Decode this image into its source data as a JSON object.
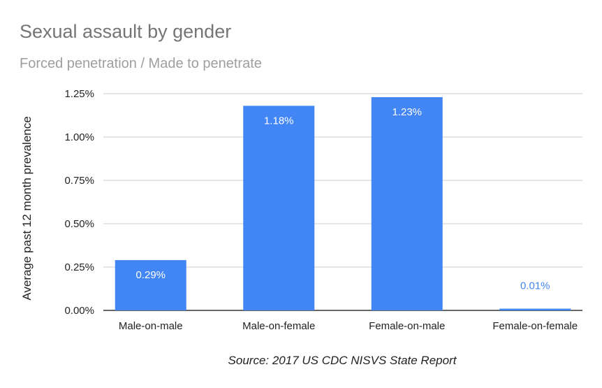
{
  "chart_data": {
    "type": "bar",
    "title": "Sexual assault by gender",
    "subtitle": "Forced penetration / Made to penetrate",
    "ylabel": "Average past 12 month prevalence",
    "xlabel": "",
    "source": "Source: 2017 US CDC NISVS State Report",
    "categories": [
      "Male-on-male",
      "Male-on-female",
      "Female-on-male",
      "Female-on-female"
    ],
    "values": [
      0.29,
      1.18,
      1.23,
      0.01
    ],
    "value_labels": [
      "0.29%",
      "1.18%",
      "1.23%",
      "0.01%"
    ],
    "y_ticks": [
      0,
      0.25,
      0.5,
      0.75,
      1.0,
      1.25
    ],
    "y_tick_labels": [
      "0.00%",
      "0.25%",
      "0.50%",
      "0.75%",
      "1.00%",
      "1.25%"
    ],
    "ylim": [
      0,
      1.25
    ],
    "unit": "%",
    "grid": true,
    "legend": "none",
    "bar_color": "#4285f4",
    "grid_color": "#cccccc",
    "axis_color": "#333333"
  }
}
